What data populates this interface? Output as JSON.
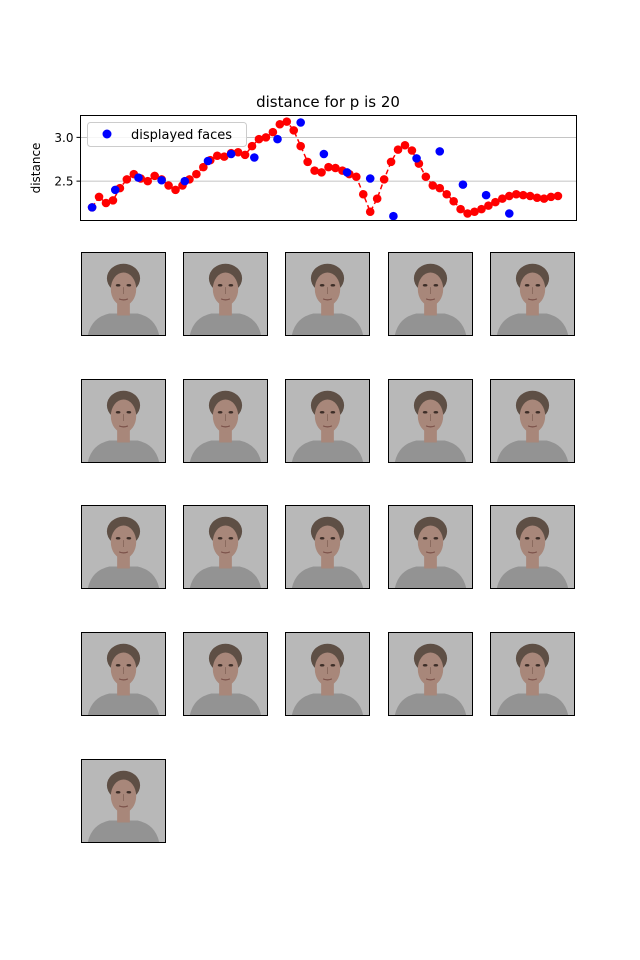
{
  "chart_data": {
    "type": "line",
    "title": "distance for p is 20",
    "xlabel": "",
    "ylabel": "distance",
    "yticks": [
      "2.5",
      "3.0"
    ],
    "ylim": [
      2.05,
      3.25
    ],
    "xlim": [
      -5,
      209
    ],
    "grid": "horizontal",
    "legend": {
      "placement": "top-left",
      "entries": [
        "displayed faces"
      ]
    },
    "series": [
      {
        "name": "",
        "color": "#ff0000",
        "style": "red dots joined by dashed line",
        "x": [
          0,
          3,
          6,
          9,
          12,
          15,
          18,
          21,
          24,
          27,
          30,
          33,
          36,
          39,
          42,
          45,
          48,
          51,
          54,
          57,
          60,
          63,
          66,
          69,
          72,
          75,
          78,
          81,
          84,
          87,
          90,
          93,
          96,
          99,
          102,
          105,
          108,
          111,
          114,
          117,
          120,
          123,
          126,
          129,
          132,
          135,
          138,
          141,
          144,
          147,
          150,
          153,
          156,
          159,
          162,
          165,
          168,
          171,
          174,
          177,
          180,
          183,
          186,
          189,
          192,
          195,
          198,
          201
        ],
        "y": [
          2.2,
          2.32,
          2.25,
          2.28,
          2.42,
          2.52,
          2.58,
          2.53,
          2.5,
          2.56,
          2.52,
          2.45,
          2.4,
          2.45,
          2.52,
          2.58,
          2.66,
          2.74,
          2.79,
          2.78,
          2.82,
          2.83,
          2.8,
          2.9,
          2.98,
          3.0,
          3.06,
          3.15,
          3.18,
          3.08,
          2.9,
          2.72,
          2.62,
          2.6,
          2.66,
          2.65,
          2.62,
          2.58,
          2.55,
          2.35,
          2.15,
          2.3,
          2.52,
          2.72,
          2.86,
          2.91,
          2.85,
          2.7,
          2.55,
          2.45,
          2.42,
          2.35,
          2.27,
          2.18,
          2.13,
          2.15,
          2.18,
          2.22,
          2.26,
          2.3,
          2.33,
          2.35,
          2.34,
          2.33,
          2.31,
          2.3,
          2.32,
          2.33
        ]
      },
      {
        "name": "displayed faces",
        "color": "#0000ff",
        "style": "blue dots",
        "x": [
          0,
          10,
          20,
          30,
          40,
          50,
          60,
          70,
          80,
          90,
          100,
          110,
          120,
          130,
          140,
          150,
          160,
          170,
          180
        ],
        "y": [
          2.2,
          2.4,
          2.54,
          2.51,
          2.5,
          2.73,
          2.81,
          2.77,
          2.98,
          3.17,
          2.81,
          2.6,
          2.53,
          2.1,
          2.76,
          2.84,
          2.46,
          2.34,
          2.13
        ]
      }
    ]
  },
  "faces": {
    "count": 21,
    "colors": {
      "background": "#b8b8b8",
      "hair": "#5e4f45",
      "skin": "#a8877a",
      "shirt": "#8f8f8f"
    }
  }
}
